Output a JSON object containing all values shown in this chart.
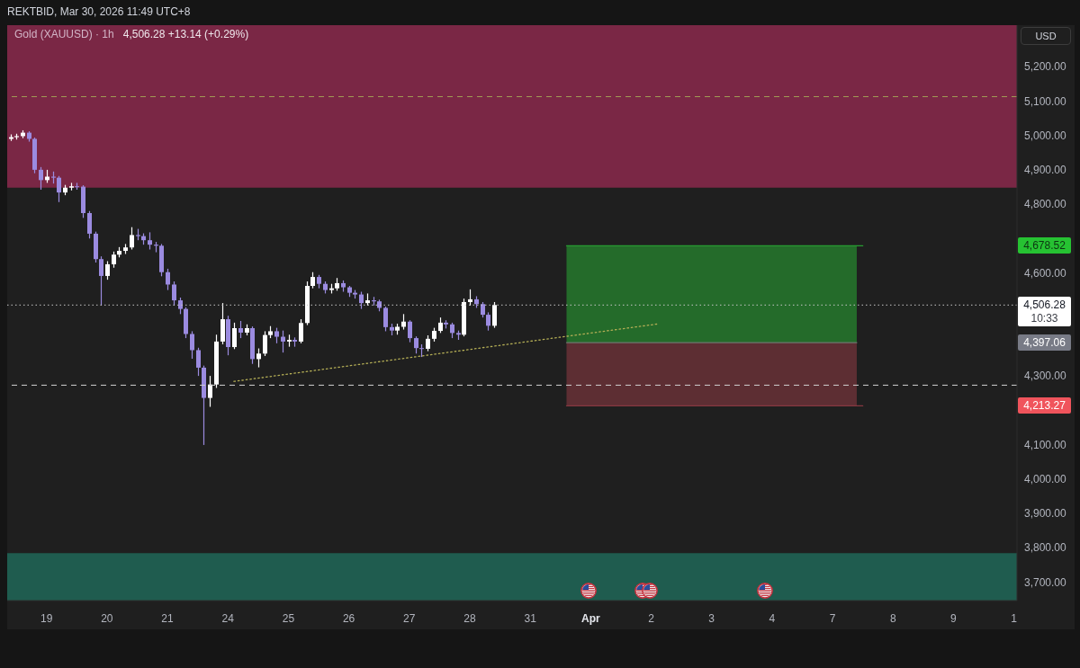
{
  "chart_data": {
    "type": "candlestick",
    "title": "Gold (XAUUSD) · 1h",
    "subtitle": "4,506.28 +13.14 (+0.29%)",
    "annotations": [
      "REKTBID, Mar 30, 2026 11:49 UTC+8",
      "USD",
      "10:33",
      "4,678.52",
      "4,397.06",
      "4,213.27"
    ],
    "categories": [
      null,
      null,
      null,
      null,
      null,
      null,
      "19",
      null,
      null,
      null,
      null,
      null,
      null,
      null,
      null,
      null,
      "20",
      null,
      null,
      null,
      null,
      null,
      null,
      null,
      null,
      null,
      "21",
      null,
      null,
      null,
      null,
      null,
      null,
      null,
      null,
      null,
      "24",
      null,
      null,
      null,
      null,
      null,
      null,
      null,
      null,
      null,
      "25",
      null,
      null,
      null,
      null,
      null,
      null,
      null,
      null,
      null,
      "26",
      null,
      null,
      null,
      null,
      null,
      null,
      null,
      null,
      null,
      "27",
      null,
      null,
      null,
      null,
      null,
      null,
      null,
      null,
      null,
      "28",
      null,
      null,
      null,
      null,
      null,
      null,
      null,
      null,
      null,
      "31",
      null,
      null,
      null,
      null,
      null,
      null,
      null,
      null,
      null,
      "Apr",
      null,
      null,
      null,
      null,
      null,
      null,
      null,
      null,
      null,
      "2",
      null,
      null,
      null,
      null,
      null,
      null,
      null,
      null,
      null,
      "3",
      null,
      null,
      null,
      null,
      null,
      null,
      null,
      null,
      null,
      "4",
      null,
      null,
      null,
      null,
      null,
      null,
      null,
      null,
      null,
      "7",
      null,
      null,
      null,
      null,
      null,
      null,
      null,
      null,
      null,
      "8",
      null,
      null,
      null,
      null,
      null,
      null,
      null,
      null,
      null,
      "9",
      null,
      null,
      null,
      null,
      null,
      null,
      null,
      null,
      null,
      "1"
    ],
    "ohlc": [
      [
        4990,
        5003,
        4984,
        4995
      ],
      [
        4995,
        5005,
        4988,
        4998
      ],
      [
        4998,
        5015,
        4992,
        5008
      ],
      [
        5008,
        5012,
        4982,
        4990
      ],
      [
        4990,
        4994,
        4890,
        4900
      ],
      [
        4900,
        4908,
        4842,
        4870
      ],
      [
        4870,
        4900,
        4862,
        4880
      ],
      [
        4880,
        4895,
        4860,
        4877
      ],
      [
        4877,
        4882,
        4806,
        4834
      ],
      [
        4834,
        4856,
        4826,
        4848
      ],
      [
        4848,
        4862,
        4840,
        4852
      ],
      [
        4852,
        4862,
        4842,
        4851
      ],
      [
        4851,
        4855,
        4760,
        4774
      ],
      [
        4774,
        4780,
        4700,
        4714
      ],
      [
        4714,
        4720,
        4630,
        4640
      ],
      [
        4640,
        4648,
        4505,
        4591
      ],
      [
        4591,
        4634,
        4580,
        4625
      ],
      [
        4625,
        4662,
        4615,
        4653
      ],
      [
        4653,
        4675,
        4645,
        4664
      ],
      [
        4664,
        4684,
        4655,
        4674
      ],
      [
        4674,
        4733,
        4668,
        4710
      ],
      [
        4710,
        4728,
        4695,
        4707
      ],
      [
        4707,
        4715,
        4682,
        4695
      ],
      [
        4695,
        4718,
        4668,
        4682
      ],
      [
        4682,
        4690,
        4660,
        4679
      ],
      [
        4679,
        4684,
        4590,
        4602
      ],
      [
        4602,
        4612,
        4550,
        4566
      ],
      [
        4566,
        4575,
        4505,
        4520
      ],
      [
        4520,
        4528,
        4480,
        4495
      ],
      [
        4495,
        4500,
        4410,
        4422
      ],
      [
        4422,
        4430,
        4350,
        4375
      ],
      [
        4375,
        4382,
        4300,
        4324
      ],
      [
        4324,
        4330,
        4099,
        4236
      ],
      [
        4236,
        4300,
        4210,
        4275
      ],
      [
        4275,
        4420,
        4265,
        4400
      ],
      [
        4400,
        4512,
        4392,
        4465
      ],
      [
        4465,
        4475,
        4360,
        4384
      ],
      [
        4384,
        4455,
        4378,
        4439
      ],
      [
        4439,
        4460,
        4410,
        4426
      ],
      [
        4426,
        4450,
        4418,
        4439
      ],
      [
        4439,
        4444,
        4335,
        4349
      ],
      [
        4349,
        4380,
        4325,
        4365
      ],
      [
        4365,
        4430,
        4358,
        4419
      ],
      [
        4419,
        4445,
        4410,
        4430
      ],
      [
        4430,
        4440,
        4395,
        4414
      ],
      [
        4414,
        4432,
        4368,
        4400
      ],
      [
        4400,
        4420,
        4385,
        4405
      ],
      [
        4405,
        4412,
        4385,
        4400
      ],
      [
        4400,
        4465,
        4395,
        4454
      ],
      [
        4454,
        4575,
        4448,
        4562
      ],
      [
        4562,
        4602,
        4555,
        4588
      ],
      [
        4588,
        4594,
        4555,
        4568
      ],
      [
        4568,
        4575,
        4540,
        4550
      ],
      [
        4550,
        4568,
        4540,
        4555
      ],
      [
        4555,
        4585,
        4548,
        4570
      ],
      [
        4570,
        4578,
        4545,
        4558
      ],
      [
        4558,
        4562,
        4530,
        4542
      ],
      [
        4542,
        4550,
        4525,
        4537
      ],
      [
        4537,
        4545,
        4495,
        4512
      ],
      [
        4512,
        4540,
        4505,
        4520
      ],
      [
        4520,
        4530,
        4505,
        4517
      ],
      [
        4517,
        4522,
        4488,
        4498
      ],
      [
        4498,
        4502,
        4430,
        4442
      ],
      [
        4442,
        4452,
        4418,
        4432
      ],
      [
        4432,
        4452,
        4420,
        4443
      ],
      [
        4443,
        4480,
        4435,
        4458
      ],
      [
        4458,
        4462,
        4398,
        4410
      ],
      [
        4410,
        4415,
        4365,
        4381
      ],
      [
        4381,
        4392,
        4355,
        4379
      ],
      [
        4379,
        4418,
        4372,
        4408
      ],
      [
        4408,
        4440,
        4400,
        4431
      ],
      [
        4431,
        4470,
        4425,
        4455
      ],
      [
        4455,
        4462,
        4438,
        4450
      ],
      [
        4450,
        4455,
        4410,
        4425
      ],
      [
        4425,
        4432,
        4405,
        4420
      ],
      [
        4420,
        4525,
        4415,
        4515
      ],
      [
        4515,
        4552,
        4505,
        4523
      ],
      [
        4523,
        4532,
        4498,
        4509
      ],
      [
        4509,
        4515,
        4470,
        4478
      ],
      [
        4478,
        4485,
        4432,
        4446
      ],
      [
        4446,
        4515,
        4440,
        4506.28
      ],
      null,
      null,
      null,
      null,
      null,
      null,
      null,
      null,
      null,
      null,
      null,
      null,
      null,
      null,
      null,
      null,
      null,
      null,
      null,
      null,
      null,
      null,
      null,
      null,
      null,
      null,
      null,
      null,
      null,
      null,
      null,
      null,
      null,
      null,
      null,
      null,
      null,
      null,
      null,
      null,
      null,
      null,
      null,
      null,
      null,
      null,
      null,
      null,
      null,
      null,
      null,
      null,
      null,
      null,
      null,
      null,
      null,
      null,
      null,
      null,
      null,
      null,
      null,
      null,
      null,
      null,
      null,
      null,
      null,
      null,
      null,
      null,
      null,
      null,
      null,
      null,
      null,
      null,
      null,
      null,
      null,
      null,
      null,
      null,
      null,
      null
    ],
    "colors": [
      "#ffffff",
      "#ffffff",
      "#ffffff",
      "#9b8be0",
      "#9b8be0",
      "#9b8be0",
      "#ffffff",
      "#9b8be0",
      "#9b8be0",
      "#ffffff",
      "#ffffff",
      "#9b8be0",
      "#9b8be0",
      "#9b8be0",
      "#9b8be0",
      "#9b8be0",
      "#ffffff",
      "#ffffff",
      "#ffffff",
      "#ffffff",
      "#ffffff",
      "#9b8be0",
      "#9b8be0",
      "#9b8be0",
      "#9b8be0",
      "#9b8be0",
      "#9b8be0",
      "#9b8be0",
      "#9b8be0",
      "#9b8be0",
      "#9b8be0",
      "#9b8be0",
      "#9b8be0",
      "#ffffff",
      "#ffffff",
      "#ffffff",
      "#9b8be0",
      "#ffffff",
      "#9b8be0",
      "#ffffff",
      "#9b8be0",
      "#ffffff",
      "#ffffff",
      "#ffffff",
      "#9b8be0",
      "#9b8be0",
      "#ffffff",
      "#9b8be0",
      "#ffffff",
      "#ffffff",
      "#ffffff",
      "#9b8be0",
      "#9b8be0",
      "#ffffff",
      "#ffffff",
      "#9b8be0",
      "#9b8be0",
      "#9b8be0",
      "#9b8be0",
      "#ffffff",
      "#9b8be0",
      "#9b8be0",
      "#9b8be0",
      "#9b8be0",
      "#ffffff",
      "#ffffff",
      "#9b8be0",
      "#9b8be0",
      "#9b8be0",
      "#ffffff",
      "#ffffff",
      "#ffffff",
      "#9b8be0",
      "#9b8be0",
      "#9b8be0",
      "#ffffff",
      "#ffffff",
      "#9b8be0",
      "#9b8be0",
      "#9b8be0",
      "#ffffff",
      null,
      null,
      null,
      null,
      null,
      null,
      null,
      null,
      null,
      null,
      null,
      null,
      null,
      null,
      null,
      null,
      null,
      null,
      null,
      null,
      null,
      null,
      null,
      null,
      null,
      null,
      null,
      null,
      null,
      null,
      null,
      null,
      null,
      null,
      null,
      null,
      null,
      null,
      null,
      null,
      null,
      null,
      null,
      null,
      null,
      null,
      null,
      null,
      null,
      null,
      null,
      null,
      null,
      null,
      null,
      null,
      null,
      null,
      null,
      null,
      null,
      null,
      null,
      null,
      null,
      null,
      null,
      null,
      null,
      null,
      null,
      null,
      null,
      null,
      null,
      null,
      null,
      null,
      null,
      null,
      null,
      null,
      null,
      null,
      null,
      null
    ],
    "series": [
      {
        "type": "line",
        "color": "#279e31",
        "values": [
          null,
          null,
          null,
          null,
          null,
          null,
          null,
          null,
          null,
          null,
          null,
          null,
          null,
          null,
          null,
          null,
          null,
          null,
          null,
          null,
          null,
          null,
          null,
          null,
          null,
          null,
          null,
          null,
          null,
          null,
          null,
          null,
          null,
          null,
          null,
          null,
          null,
          null,
          null,
          null,
          null,
          null,
          null,
          null,
          null,
          null,
          null,
          null,
          null,
          null,
          null,
          null,
          null,
          null,
          null,
          null,
          null,
          null,
          null,
          null,
          null,
          null,
          null,
          null,
          null,
          null,
          null,
          null,
          null,
          null,
          null,
          null,
          null,
          null,
          null,
          null,
          null,
          null,
          null,
          null,
          null,
          null,
          null,
          null,
          null,
          null,
          null,
          null,
          null,
          null,
          null,
          null,
          4679,
          4679,
          4679,
          4679,
          4679,
          4679,
          4679,
          4679,
          4679,
          4679,
          4679,
          4679,
          4679,
          4679,
          4679,
          4679,
          4679,
          4679,
          4679,
          4679,
          4679,
          4679,
          4679,
          4679,
          4679,
          4679,
          4679,
          4679,
          4679,
          4679,
          4679,
          4679,
          4679,
          4679,
          4679,
          4679,
          4679,
          4679,
          4679,
          4679,
          4679,
          4679,
          4679,
          4679,
          4679,
          4679,
          4679,
          4679,
          4679,
          4679,
          null,
          null,
          null,
          null,
          null,
          null,
          null,
          null,
          null,
          null,
          null,
          null,
          null,
          null,
          null,
          null,
          null,
          null,
          null,
          null,
          null,
          null,
          null,
          null,
          null
        ],
        "lower": [
          null,
          null,
          null,
          null,
          null,
          null,
          null,
          null,
          null,
          null,
          null,
          null,
          null,
          null,
          null,
          null,
          null,
          null,
          null,
          null,
          null,
          null,
          null,
          null,
          null,
          null,
          null,
          null,
          null,
          null,
          null,
          null,
          null,
          null,
          null,
          null,
          null,
          null,
          null,
          null,
          null,
          null,
          null,
          null,
          null,
          null,
          null,
          null,
          null,
          null,
          null,
          null,
          null,
          null,
          null,
          null,
          null,
          null,
          null,
          null,
          null,
          null,
          null,
          null,
          null,
          null,
          null,
          null,
          null,
          null,
          null,
          null,
          null,
          null,
          null,
          null,
          null,
          null,
          null,
          null,
          null,
          null,
          null,
          null,
          null,
          null,
          null,
          null,
          null,
          null,
          null,
          null,
          4397,
          4397,
          4397,
          4397,
          4397,
          4397,
          4397,
          4397,
          4397,
          4397,
          4397,
          4397,
          4397,
          4397,
          4397,
          4397,
          4397,
          4397,
          4397,
          4397,
          4397,
          4397,
          4397,
          4397,
          4397,
          4397,
          4397,
          4397,
          4397,
          4397,
          4397,
          4397,
          4397,
          4397,
          4397,
          4397,
          4397,
          4397,
          4397,
          4397,
          4397,
          4397,
          4397,
          4397,
          4397,
          4397,
          4397,
          4397,
          4397,
          null,
          null,
          null,
          null,
          null,
          null,
          null,
          null,
          null,
          null,
          null,
          null,
          null,
          null,
          null,
          null,
          null,
          null,
          null,
          null,
          null,
          null,
          null,
          null,
          null,
          null
        ],
        "upper": [
          null,
          null,
          null,
          null,
          null,
          null,
          null,
          null,
          null,
          null,
          null,
          null,
          null,
          null,
          null,
          null,
          null,
          null,
          null,
          null,
          null,
          null,
          null,
          null,
          null,
          null,
          null,
          null,
          null,
          null,
          null,
          null,
          null,
          null,
          null,
          null,
          null,
          null,
          null,
          null,
          null,
          null,
          null,
          null,
          null,
          null,
          null,
          null,
          null,
          null,
          null,
          null,
          null,
          null,
          null,
          null,
          null,
          null,
          null,
          null,
          null,
          null,
          null,
          null,
          null,
          null,
          null,
          null,
          null,
          null,
          null,
          null,
          null,
          null,
          null,
          null,
          null,
          null,
          null,
          null,
          null,
          null,
          null,
          null,
          null,
          null,
          null,
          null,
          null,
          null,
          null,
          null,
          4679,
          4679,
          4679,
          4679,
          4679,
          4679,
          4679,
          4679,
          4679,
          4679,
          4679,
          4679,
          4679,
          4679,
          4679,
          4679,
          4679,
          4679,
          4679,
          4679,
          4679,
          4679,
          4679,
          4679,
          4679,
          4679,
          4679,
          4679,
          4679,
          4679,
          4679,
          4679,
          4679,
          4679,
          4679,
          4679,
          4679,
          4679,
          4679,
          4679,
          4679,
          4679,
          4679,
          4679,
          4679,
          4679,
          4679,
          4679,
          4679,
          null,
          null,
          null,
          null,
          null,
          null,
          null,
          null,
          null,
          null,
          null,
          null,
          null,
          null,
          null,
          null,
          null,
          null,
          null,
          null,
          null,
          null,
          null,
          null,
          null,
          null
        ]
      },
      {
        "type": "line",
        "color": "#863840",
        "values": [
          null,
          null,
          null,
          null,
          null,
          null,
          null,
          null,
          null,
          null,
          null,
          null,
          null,
          null,
          null,
          null,
          null,
          null,
          null,
          null,
          null,
          null,
          null,
          null,
          null,
          null,
          null,
          null,
          null,
          null,
          null,
          null,
          null,
          null,
          null,
          null,
          null,
          null,
          null,
          null,
          null,
          null,
          null,
          null,
          null,
          null,
          null,
          null,
          null,
          null,
          null,
          null,
          null,
          null,
          null,
          null,
          null,
          null,
          null,
          null,
          null,
          null,
          null,
          null,
          null,
          null,
          null,
          null,
          null,
          null,
          null,
          null,
          null,
          null,
          null,
          null,
          null,
          null,
          null,
          null,
          null,
          null,
          null,
          null,
          null,
          null,
          null,
          null,
          null,
          null,
          null,
          null,
          4213,
          4213,
          4213,
          4213,
          4213,
          4213,
          4213,
          4213,
          4213,
          4213,
          4213,
          4213,
          4213,
          4213,
          4213,
          4213,
          4213,
          4213,
          4213,
          4213,
          4213,
          4213,
          4213,
          4213,
          4213,
          4213,
          4213,
          4213,
          4213,
          4213,
          4213,
          4213,
          4213,
          4213,
          4213,
          4213,
          4213,
          4213,
          4213,
          4213,
          4213,
          4213,
          4213,
          4213,
          4213,
          4213,
          4213,
          4213,
          4213,
          4213,
          null,
          null,
          null,
          null,
          null,
          null,
          null,
          null,
          null,
          null,
          null,
          null,
          null,
          null,
          null,
          null,
          null,
          null,
          null,
          null,
          null,
          null,
          null,
          null,
          null
        ],
        "lower": [
          null,
          null,
          null,
          null,
          null,
          null,
          null,
          null,
          null,
          null,
          null,
          null,
          null,
          null,
          null,
          null,
          null,
          null,
          null,
          null,
          null,
          null,
          null,
          null,
          null,
          null,
          null,
          null,
          null,
          null,
          null,
          null,
          null,
          null,
          null,
          null,
          null,
          null,
          null,
          null,
          null,
          null,
          null,
          null,
          null,
          null,
          null,
          null,
          null,
          null,
          null,
          null,
          null,
          null,
          null,
          null,
          null,
          null,
          null,
          null,
          null,
          null,
          null,
          null,
          null,
          null,
          null,
          null,
          null,
          null,
          null,
          null,
          null,
          null,
          null,
          null,
          null,
          null,
          null,
          null,
          null,
          null,
          null,
          null,
          null,
          null,
          null,
          null,
          null,
          null,
          null,
          null,
          4213,
          4213,
          4213,
          4213,
          4213,
          4213,
          4213,
          4213,
          4213,
          4213,
          4213,
          4213,
          4213,
          4213,
          4213,
          4213,
          4213,
          4213,
          4213,
          4213,
          4213,
          4213,
          4213,
          4213,
          4213,
          4213,
          4213,
          4213,
          4213,
          4213,
          4213,
          4213,
          4213,
          4213,
          4213,
          4213,
          4213,
          4213,
          4213,
          4213,
          4213,
          4213,
          4213,
          4213,
          4213,
          4213,
          4213,
          4213,
          4213,
          null,
          null,
          null,
          null,
          null,
          null,
          null,
          null,
          null,
          null,
          null,
          null,
          null,
          null,
          null,
          null,
          null,
          null,
          null,
          null,
          null,
          null,
          null,
          null,
          null,
          null
        ],
        "upper": [
          null,
          null,
          null,
          null,
          null,
          null,
          null,
          null,
          null,
          null,
          null,
          null,
          null,
          null,
          null,
          null,
          null,
          null,
          null,
          null,
          null,
          null,
          null,
          null,
          null,
          null,
          null,
          null,
          null,
          null,
          null,
          null,
          null,
          null,
          null,
          null,
          null,
          null,
          null,
          null,
          null,
          null,
          null,
          null,
          null,
          null,
          null,
          null,
          null,
          null,
          null,
          null,
          null,
          null,
          null,
          null,
          null,
          null,
          null,
          null,
          null,
          null,
          null,
          null,
          null,
          null,
          null,
          null,
          null,
          null,
          null,
          null,
          null,
          null,
          null,
          null,
          null,
          null,
          null,
          null,
          null,
          null,
          null,
          null,
          null,
          null,
          null,
          null,
          null,
          null,
          null,
          null,
          4397,
          4397,
          4397,
          4397,
          4397,
          4397,
          4397,
          4397,
          4397,
          4397,
          4397,
          4397,
          4397,
          4397,
          4397,
          4397,
          4397,
          4397,
          4397,
          4397,
          4397,
          4397,
          4397,
          4397,
          4397,
          4397,
          4397,
          4397,
          4397,
          4397,
          4397,
          4397,
          4397,
          4397,
          4397,
          4397,
          4397,
          4397,
          4397,
          4397,
          4397,
          4397,
          4397,
          4397,
          4397,
          4397,
          4397,
          4397,
          4397,
          null,
          null,
          null,
          null,
          null,
          null,
          null,
          null,
          null,
          null,
          null,
          null,
          null,
          null,
          null,
          null,
          null,
          null,
          null,
          null,
          null,
          null,
          null,
          null,
          null,
          null
        ]
      },
      {
        "type": "line",
        "color": "#6f766f",
        "values": [
          null,
          null,
          null,
          null,
          null,
          null,
          null,
          null,
          null,
          null,
          null,
          null,
          null,
          null,
          null,
          null,
          null,
          null,
          null,
          null,
          null,
          null,
          null,
          null,
          null,
          null,
          null,
          null,
          null,
          null,
          null,
          null,
          null,
          null,
          null,
          null,
          null,
          null,
          null,
          null,
          null,
          null,
          null,
          null,
          null,
          null,
          null,
          null,
          null,
          null,
          null,
          null,
          null,
          null,
          null,
          null,
          null,
          null,
          null,
          null,
          null,
          null,
          null,
          null,
          null,
          null,
          null,
          null,
          null,
          null,
          null,
          null,
          null,
          null,
          null,
          null,
          null,
          null,
          null,
          null,
          null,
          null,
          null,
          null,
          null,
          null,
          null,
          null,
          null,
          null,
          null,
          null,
          4397,
          4397,
          4397,
          4397,
          4397,
          4397,
          4397,
          4397,
          4397,
          4397,
          4397,
          4397,
          4397,
          4397,
          4397,
          4397,
          4397,
          4397,
          4397,
          4397,
          4397,
          4397,
          4397,
          4397,
          4397,
          4397,
          4397,
          4397,
          4397,
          4397,
          4397,
          4397,
          4397,
          4397,
          4397,
          4397,
          4397,
          4397,
          4397,
          4397,
          4397,
          4397,
          4397,
          4397,
          4397,
          4397,
          4397,
          4397,
          4397,
          null,
          null,
          null,
          null,
          null,
          null,
          null,
          null,
          null,
          null,
          null,
          null,
          null,
          null,
          null,
          null,
          null,
          null,
          null,
          null,
          null,
          null,
          null,
          null,
          null,
          null
        ]
      },
      {
        "type": "line",
        "color": "#b3ad55",
        "line_style": "dotted",
        "values": [
          null,
          null,
          null,
          null,
          null,
          null,
          null,
          null,
          null,
          null,
          null,
          null,
          null,
          null,
          null,
          null,
          null,
          null,
          null,
          null,
          null,
          null,
          null,
          null,
          null,
          null,
          null,
          null,
          null,
          null,
          null,
          null,
          null,
          null,
          null,
          null,
          null,
          4284,
          null,
          null,
          null,
          null,
          null,
          null,
          null,
          null,
          null,
          null,
          null,
          null,
          null,
          null,
          null,
          null,
          null,
          null,
          null,
          null,
          null,
          null,
          null,
          null,
          null,
          null,
          null,
          null,
          null,
          null,
          null,
          null,
          null,
          null,
          null,
          null,
          null,
          null,
          null,
          null,
          null,
          null,
          null,
          null,
          null,
          null,
          null,
          null,
          null,
          null,
          null,
          null,
          null,
          null,
          null,
          null,
          null,
          null,
          null,
          null,
          null,
          null,
          null,
          null,
          null,
          null,
          null,
          null,
          null,
          4451,
          null,
          null,
          null,
          null,
          null,
          null,
          null,
          null,
          null,
          null,
          null,
          null,
          null,
          null,
          null,
          null,
          null,
          null,
          null,
          null,
          null,
          null,
          null,
          null,
          null,
          null,
          null,
          null,
          null,
          null,
          null,
          null,
          null,
          null,
          null,
          null,
          null,
          null,
          null,
          null,
          null,
          null,
          null,
          null,
          null,
          null,
          null,
          null,
          null,
          null,
          null,
          null,
          null,
          null,
          null,
          null,
          null,
          null,
          null
        ]
      }
    ],
    "ylim": [
      3646,
      5321
    ],
    "yticks": [
      {
        "value": 3700,
        "label": "3,700.00"
      },
      {
        "value": 3800,
        "label": "3,800.00"
      },
      {
        "value": 3900,
        "label": "3,900.00"
      },
      {
        "value": 4000,
        "label": "4,000.00"
      },
      {
        "value": 4100,
        "label": "4,100.00"
      },
      {
        "value": 4300,
        "label": "4,300.00"
      },
      {
        "value": 4600,
        "label": "4,600.00"
      },
      {
        "value": 4800,
        "label": "4,800.00"
      },
      {
        "value": 4900,
        "label": "4,900.00"
      },
      {
        "value": 5000,
        "label": "5,000.00"
      },
      {
        "value": 5100,
        "label": "5,100.00"
      },
      {
        "value": 5200,
        "label": "5,200.00"
      }
    ],
    "ref_lines": [
      {
        "axis": "y",
        "value": 5113,
        "color": "#a39d55",
        "line_style": "dashed"
      },
      {
        "axis": "y",
        "value": 4506.28,
        "label": "4,506.28",
        "color": "#c8c8c8",
        "line_style": "dotted"
      },
      {
        "axis": "y",
        "value": 4273,
        "color": "#d0d0d0",
        "line_style": "dashed"
      }
    ],
    "bands": [
      {
        "axis": "y",
        "from": 4848,
        "to": 5321,
        "color": "#7a2745"
      },
      {
        "axis": "y",
        "from": 3646,
        "to": 3784,
        "color": "#1f5c4f"
      }
    ]
  }
}
